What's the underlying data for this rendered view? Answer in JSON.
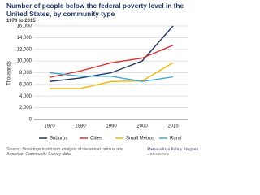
{
  "chart_data": {
    "type": "line",
    "title": "Number of people below the federal poverty level in the United States, by community type",
    "subtitle": "1970 to 2015",
    "y_label": "Thousands",
    "source": "Source: Brookings Institution analysis of decennial census and American Community Survey data",
    "logo": "Metropolitan Policy Program",
    "logo_sub": "at BROOKINGS",
    "categories": [
      "1970",
      "1980",
      "1990",
      "2000",
      "2015"
    ],
    "series": [
      {
        "name": "Suburbs",
        "color": "#1f3864",
        "values": [
          6500,
          7100,
          8000,
          10000,
          16000
        ]
      },
      {
        "name": "Cities",
        "color": "#e0312f",
        "values": [
          7200,
          8300,
          9700,
          10500,
          12700
        ]
      },
      {
        "name": "Small Metros",
        "color": "#f4b400",
        "values": [
          5300,
          5300,
          6500,
          6600,
          9700
        ]
      },
      {
        "name": "Rural",
        "color": "#3fa9d8",
        "values": [
          8000,
          7400,
          7400,
          6500,
          7300
        ]
      }
    ],
    "ylim": [
      0,
      16000
    ],
    "yticks": [
      0,
      {
        "value": 2000,
        "label": "2,000"
      },
      {
        "value": 4000,
        "label": "4,000"
      },
      {
        "value": 6000,
        "label": "6,000"
      },
      {
        "value": 8000,
        "label": "8,000"
      },
      {
        "value": 10000,
        "label": "10,000"
      },
      {
        "value": 12000,
        "label": "12,000"
      },
      {
        "value": 14000,
        "label": "14,000"
      },
      {
        "value": 16000,
        "label": "16,000"
      }
    ],
    "grid": true
  }
}
